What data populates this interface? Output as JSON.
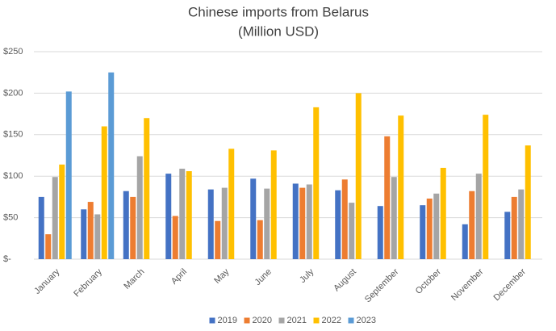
{
  "chart_data": {
    "type": "bar",
    "title": "Chinese imports from Belarus",
    "subtitle": "(Million USD)",
    "categories": [
      "January",
      "February",
      "March",
      "April",
      "May",
      "June",
      "July",
      "August",
      "September",
      "October",
      "November",
      "December"
    ],
    "series": [
      {
        "name": "2019",
        "color": "#4472c4",
        "values": [
          75,
          60,
          82,
          103,
          84,
          97,
          91,
          83,
          64,
          65,
          42,
          57
        ]
      },
      {
        "name": "2020",
        "color": "#ed7d31",
        "values": [
          30,
          69,
          75,
          52,
          46,
          47,
          86,
          96,
          148,
          73,
          82,
          75
        ]
      },
      {
        "name": "2021",
        "color": "#a5a5a5",
        "values": [
          99,
          54,
          124,
          109,
          86,
          85,
          90,
          68,
          99,
          79,
          103,
          84
        ]
      },
      {
        "name": "2022",
        "color": "#ffc000",
        "values": [
          114,
          160,
          170,
          106,
          133,
          131,
          183,
          200,
          173,
          110,
          174,
          137
        ]
      },
      {
        "name": "2023",
        "color": "#5b9bd5",
        "values": [
          202,
          225,
          null,
          null,
          null,
          null,
          null,
          null,
          null,
          null,
          null,
          null
        ]
      }
    ],
    "ylim": [
      0,
      250
    ],
    "yticks": [
      {
        "value": 0,
        "label": "$-"
      },
      {
        "value": 50,
        "label": "$50"
      },
      {
        "value": 100,
        "label": "$100"
      },
      {
        "value": 150,
        "label": "$150"
      },
      {
        "value": 200,
        "label": "$200"
      },
      {
        "value": 250,
        "label": "$250"
      }
    ],
    "grid": true,
    "legend": "bottom"
  }
}
